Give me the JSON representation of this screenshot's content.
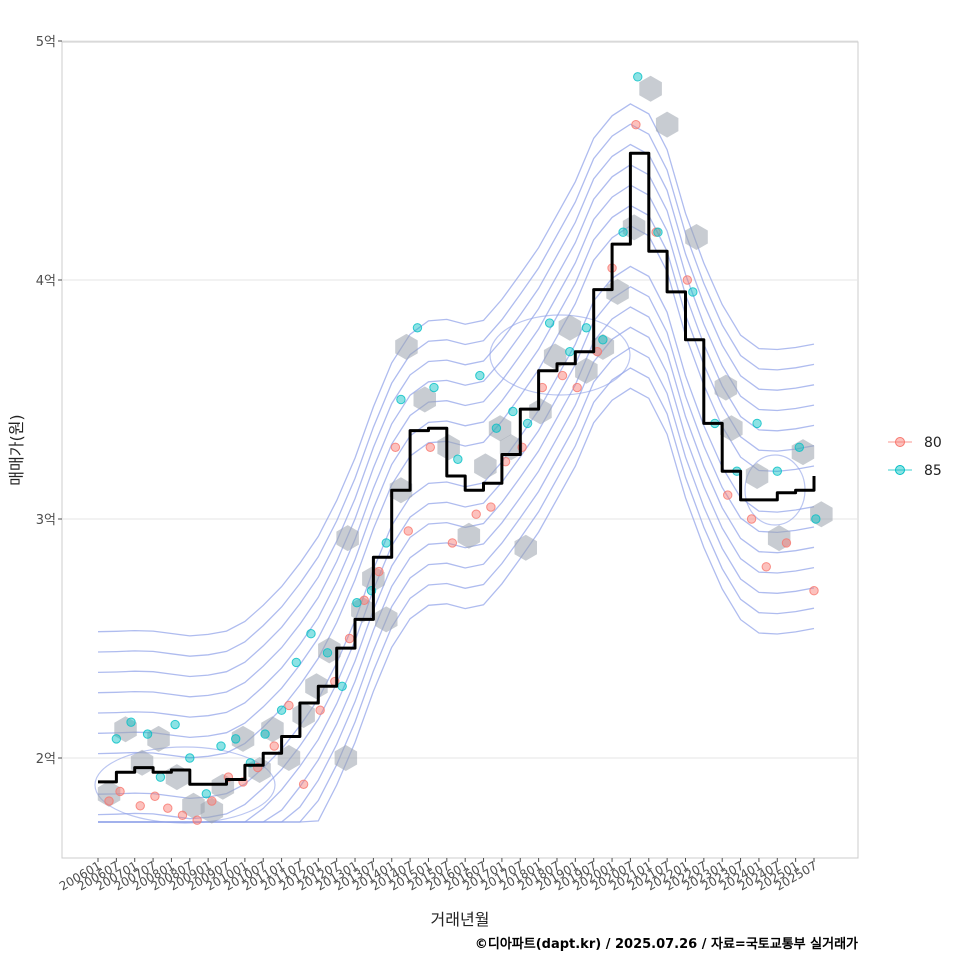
{
  "chart_data": {
    "type": "scatter",
    "title": "",
    "xlabel": "거래년월",
    "ylabel": "매매가(원)",
    "caption": "©디아파트(dapt.kr) / 2025.07.26 / 자료=국토교통부 실거래가",
    "x_tick_labels": [
      "200601",
      "200607",
      "200701",
      "200707",
      "200801",
      "200807",
      "200901",
      "200907",
      "201001",
      "201007",
      "201101",
      "201107",
      "201201",
      "201207",
      "201301",
      "201307",
      "201401",
      "201407",
      "201501",
      "201507",
      "201601",
      "201607",
      "201701",
      "201707",
      "201801",
      "201807",
      "201901",
      "201907",
      "202001",
      "202007",
      "202101",
      "202107",
      "202201",
      "202207",
      "202301",
      "202307",
      "202401",
      "202407",
      "202501",
      "202507"
    ],
    "y_ticks": [
      2,
      3,
      4,
      5
    ],
    "y_tick_labels": [
      "2억",
      "3억",
      "4억",
      "5억"
    ],
    "ylim": [
      1.6,
      5.0
    ],
    "grid": true,
    "legend": {
      "position": "right",
      "entries": [
        {
          "label": "80",
          "color": "#F8766D"
        },
        {
          "label": "85",
          "color": "#00BFC4"
        }
      ]
    },
    "colors": {
      "line": "#000000",
      "hex": "#9aa3ad",
      "contour": "#8da0e8",
      "grid": "#e6e6e6",
      "panel_border": "#cccccc"
    },
    "series": [
      {
        "name": "rolling-median",
        "kind": "line",
        "x": [
          0,
          1,
          2,
          3,
          4,
          5,
          6,
          7,
          8,
          9,
          10,
          11,
          12,
          13,
          14,
          15,
          16,
          17,
          18,
          19,
          20,
          21,
          22,
          23,
          24,
          25,
          26,
          27,
          28,
          29,
          30,
          31,
          32,
          33,
          34,
          35,
          36,
          37,
          38,
          39
        ],
        "values": [
          1.9,
          1.94,
          1.96,
          1.94,
          1.95,
          1.89,
          1.89,
          1.91,
          1.97,
          2.02,
          2.09,
          2.23,
          2.3,
          2.46,
          2.58,
          2.84,
          3.12,
          3.37,
          3.38,
          3.18,
          3.12,
          3.15,
          3.27,
          3.46,
          3.62,
          3.65,
          3.7,
          3.96,
          4.15,
          4.53,
          4.12,
          3.95,
          3.75,
          3.4,
          3.2,
          3.08,
          3.08,
          3.11,
          3.12,
          3.18
        ]
      }
    ],
    "points_80": {
      "x": [
        0.6,
        1.2,
        2.3,
        3.1,
        3.8,
        4.6,
        5.4,
        6.2,
        7.1,
        7.9,
        8.7,
        9.6,
        10.4,
        11.2,
        12.1,
        12.9,
        13.7,
        14.5,
        15.3,
        16.2,
        16.9,
        18.1,
        19.3,
        20.6,
        21.4,
        22.2,
        23.1,
        24.2,
        25.3,
        26.1,
        27.2,
        28.0,
        29.3,
        30.4,
        32.1,
        34.3,
        35.6,
        36.4,
        37.5,
        39.0
      ],
      "y": [
        1.82,
        1.86,
        1.8,
        1.84,
        1.79,
        1.76,
        1.74,
        1.82,
        1.92,
        1.9,
        1.96,
        2.05,
        2.22,
        1.89,
        2.2,
        2.32,
        2.5,
        2.66,
        2.78,
        3.3,
        2.95,
        3.3,
        2.9,
        3.02,
        3.05,
        3.24,
        3.3,
        3.55,
        3.6,
        3.55,
        3.7,
        4.05,
        4.65,
        4.2,
        4.0,
        3.1,
        3.0,
        2.8,
        2.9,
        2.7
      ]
    },
    "points_85": {
      "x": [
        1.0,
        1.8,
        2.7,
        3.4,
        4.2,
        5.0,
        5.9,
        6.7,
        7.5,
        8.3,
        9.1,
        10.0,
        10.8,
        11.6,
        12.5,
        13.3,
        14.1,
        14.9,
        15.7,
        16.5,
        17.4,
        18.3,
        19.6,
        20.8,
        21.7,
        22.6,
        23.4,
        24.6,
        25.7,
        26.6,
        27.5,
        28.6,
        29.4,
        30.5,
        32.4,
        33.6,
        34.8,
        35.9,
        37.0,
        38.2,
        39.1
      ],
      "y": [
        2.08,
        2.15,
        2.1,
        1.92,
        2.14,
        2.0,
        1.85,
        2.05,
        2.08,
        1.98,
        2.1,
        2.2,
        2.4,
        2.52,
        2.44,
        2.3,
        2.65,
        2.7,
        2.9,
        3.5,
        3.8,
        3.55,
        3.25,
        3.6,
        3.38,
        3.45,
        3.4,
        3.82,
        3.7,
        3.8,
        3.75,
        4.2,
        4.85,
        4.2,
        3.95,
        3.4,
        3.2,
        3.4,
        3.2,
        3.3,
        3.0
      ]
    },
    "hexbins": {
      "x": [
        0.6,
        1.5,
        2.4,
        3.3,
        4.3,
        5.2,
        6.2,
        6.8,
        7.9,
        8.8,
        9.5,
        10.4,
        11.2,
        11.9,
        12.6,
        13.5,
        13.6,
        14.4,
        15.0,
        15.7,
        16.5,
        16.8,
        17.8,
        19.1,
        20.2,
        21.1,
        21.9,
        22.5,
        23.3,
        24.1,
        24.9,
        25.7,
        26.6,
        27.5,
        28.3,
        29.2,
        30.1,
        31.0,
        32.6,
        34.2,
        34.5,
        35.9,
        37.1,
        38.4,
        39.4
      ],
      "y": [
        1.85,
        2.12,
        1.98,
        2.08,
        1.92,
        1.8,
        1.78,
        1.88,
        2.08,
        1.95,
        2.12,
        2.0,
        2.18,
        2.3,
        2.45,
        2.0,
        2.92,
        2.62,
        2.75,
        2.58,
        3.12,
        3.72,
        3.5,
        3.3,
        2.93,
        3.22,
        3.38,
        3.3,
        2.88,
        3.45,
        3.68,
        3.8,
        3.62,
        3.72,
        3.95,
        4.22,
        4.8,
        4.65,
        4.18,
        3.55,
        3.38,
        3.18,
        2.92,
        3.28,
        3.02
      ]
    }
  }
}
